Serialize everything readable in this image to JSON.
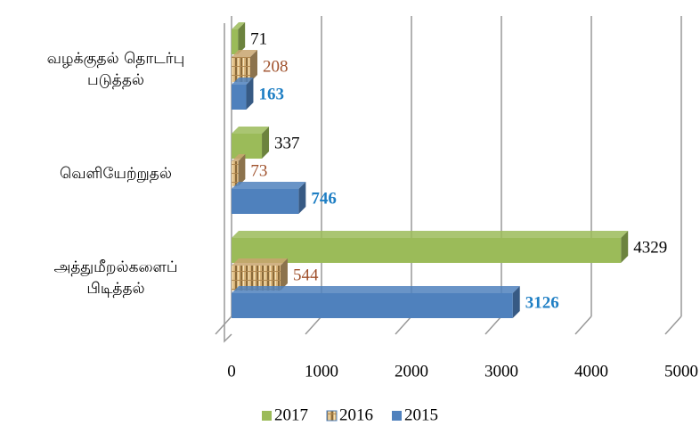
{
  "chart_data": {
    "type": "bar",
    "orientation": "horizontal",
    "three_d": true,
    "categories": [
      [
        "வழக்குதல்  தொடர்பு",
        "படுத்தல்"
      ],
      [
        "வெளியேற்றுதல்"
      ],
      [
        "அத்துமீறல்களைப்",
        "பிடித்தல்"
      ]
    ],
    "series": [
      {
        "name": "2017",
        "color": "#9bbb59",
        "label_color": "#000000",
        "values": [
          71,
          337,
          4329
        ]
      },
      {
        "name": "2016",
        "color": "#c8a46e",
        "label_color": "#a0522d",
        "textured": true,
        "values": [
          208,
          73,
          544
        ]
      },
      {
        "name": "2015",
        "color": "#4f81bd",
        "label_color": "#1f7fc4",
        "values": [
          163,
          746,
          3126
        ]
      }
    ],
    "xlim": [
      0,
      5000
    ],
    "xticks": [
      0,
      1000,
      2000,
      3000,
      4000,
      5000
    ],
    "grid": true,
    "legend": "bottom"
  }
}
